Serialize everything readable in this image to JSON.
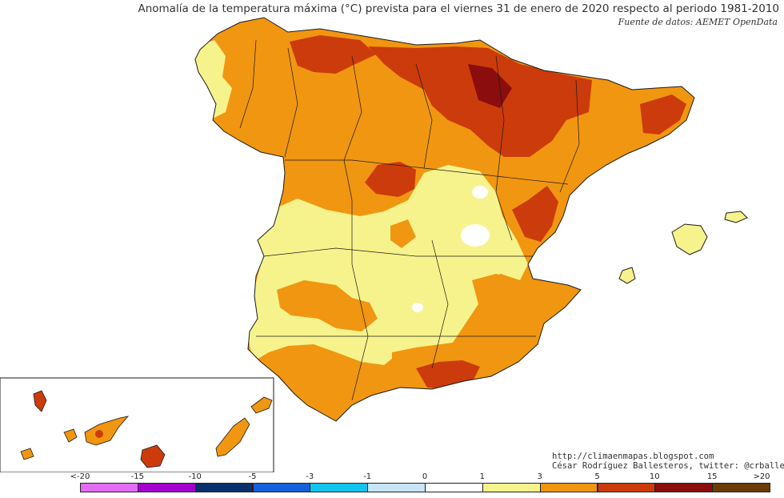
{
  "title": "Anomalía de la temperatura máxima (°C) prevista para el viernes 31 de enero de 2020 respecto al periodo 1981-2010",
  "source": "Fuente de datos: AEMET OpenData",
  "credit": {
    "url": "http://climaenmapas.blogspot.com",
    "author": "César Rodríguez Ballesteros, twitter: @crballesteros"
  },
  "map": {
    "region": "España peninsular, Baleares y Canarias",
    "variable": "Anomalía de la temperatura máxima (°C)",
    "reference_period": "1981-2010",
    "colors": {
      "0_1": "#ffffff",
      "1_3": "#f7f38c",
      "3_5": "#f09611",
      "5_10": "#cc3b0b",
      "10_15": "#8b0d0d"
    }
  },
  "legend": {
    "tick_labels": [
      "<-20",
      "-15",
      "-10",
      "-5",
      "-3",
      "-1",
      "0",
      "1",
      "3",
      "5",
      "10",
      "15",
      ">20"
    ],
    "classes": [
      {
        "range": "-20 a -15",
        "color": "#e26cf2"
      },
      {
        "range": "-15 a -10",
        "color": "#a300cf"
      },
      {
        "range": "-10 a -5",
        "color": "#08306b"
      },
      {
        "range": "-5 a -3",
        "color": "#1560d8"
      },
      {
        "range": "-3 a -1",
        "color": "#12c4ee"
      },
      {
        "range": "-1 a 0",
        "color": "#c7e4f8"
      },
      {
        "range": "0 a 1",
        "color": "#ffffff"
      },
      {
        "range": "1 a 3",
        "color": "#f7f38c"
      },
      {
        "range": "3 a 5",
        "color": "#f09611"
      },
      {
        "range": "5 a 10",
        "color": "#cc3b0b"
      },
      {
        "range": "10 a 15",
        "color": "#8b0d0d"
      },
      {
        "range": "15 a 20",
        "color": "#6b3c06"
      }
    ]
  }
}
